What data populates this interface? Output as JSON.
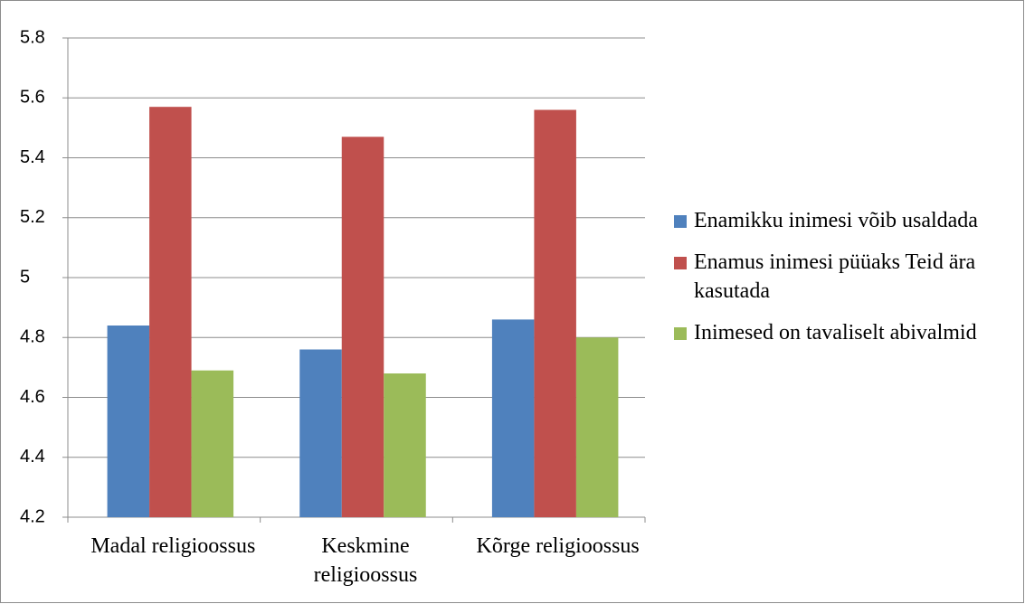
{
  "chart_data": {
    "type": "bar",
    "categories": [
      "Madal religioossus",
      "Keskmine religioossus",
      "Kõrge religioossus"
    ],
    "series": [
      {
        "name": "Enamikku inimesi võib usaldada",
        "color": "#4f81bd",
        "values": [
          4.84,
          4.76,
          4.86
        ]
      },
      {
        "name": "Enamus inimesi püüaks Teid ära kasutada",
        "color": "#c0504d",
        "values": [
          5.57,
          5.47,
          5.56
        ]
      },
      {
        "name": "Inimesed on tavaliselt abivalmid",
        "color": "#9bbb59",
        "values": [
          4.69,
          4.68,
          4.8
        ]
      }
    ],
    "ylim": [
      4.2,
      5.8
    ],
    "yticks": [
      4.2,
      4.4,
      4.6,
      4.8,
      5,
      5.2,
      5.4,
      5.6,
      5.8
    ],
    "grid": true,
    "legend": "right"
  }
}
